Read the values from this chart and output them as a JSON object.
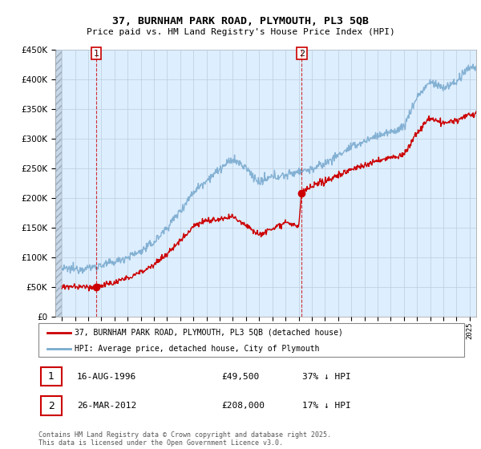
{
  "title": "37, BURNHAM PARK ROAD, PLYMOUTH, PL3 5QB",
  "subtitle": "Price paid vs. HM Land Registry's House Price Index (HPI)",
  "sale1_label": "1",
  "sale2_label": "2",
  "sale1_date": 1996.62,
  "sale2_date": 2012.23,
  "sale1_price": 49500,
  "sale2_price": 208000,
  "sale1_text": "16-AUG-1996",
  "sale2_text": "26-MAR-2012",
  "sale1_pct": "37% ↓ HPI",
  "sale2_pct": "17% ↓ HPI",
  "legend_label1": "37, BURNHAM PARK ROAD, PLYMOUTH, PL3 5QB (detached house)",
  "legend_label2": "HPI: Average price, detached house, City of Plymouth",
  "footer": "Contains HM Land Registry data © Crown copyright and database right 2025.\nThis data is licensed under the Open Government Licence v3.0.",
  "red_color": "#cc0000",
  "blue_color": "#7aabcf",
  "chart_bg": "#ddeeff",
  "ylim": [
    0,
    450000
  ],
  "xmin": 1993.5,
  "xmax": 2025.5,
  "hatch_end": 1994.0,
  "background_color": "#ffffff",
  "grid_color": "#bbccdd"
}
